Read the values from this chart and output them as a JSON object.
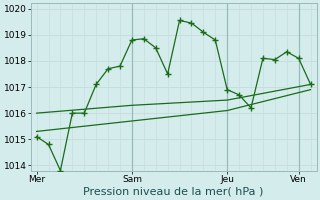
{
  "bg_color": "#d4ecec",
  "grid_color_h": "#c8dede",
  "grid_color_v": "#c8dede",
  "vline_color": "#9ababa",
  "line_color": "#1a6b1a",
  "marker_style": "+",
  "marker_size": 4,
  "marker_lw": 1.0,
  "xlabel": "Pression niveau de la mer( hPa )",
  "xlabel_fontsize": 8,
  "ylim": [
    1013.8,
    1020.2
  ],
  "yticks": [
    1014,
    1015,
    1016,
    1017,
    1018,
    1019,
    1020
  ],
  "ytick_fontsize": 6.5,
  "xtick_fontsize": 6.5,
  "day_labels": [
    "Mer",
    "Sam",
    "Jeu",
    "Ven"
  ],
  "day_positions": [
    0,
    8,
    16,
    22
  ],
  "vline_positions": [
    8,
    16,
    22
  ],
  "total_points": 24,
  "series1_x": [
    0,
    1,
    2,
    3,
    4,
    5,
    6,
    7,
    8,
    9,
    10,
    11,
    12,
    13,
    14,
    15,
    16,
    17,
    18,
    19,
    20,
    21,
    22,
    23
  ],
  "series1_y": [
    1015.1,
    1014.8,
    1013.8,
    1016.0,
    1016.0,
    1017.1,
    1017.7,
    1017.8,
    1018.8,
    1018.85,
    1018.5,
    1017.5,
    1019.55,
    1019.45,
    1019.1,
    1018.8,
    1016.9,
    1016.7,
    1016.2,
    1018.1,
    1018.05,
    1018.35,
    1018.1,
    1017.1
  ],
  "series2_x": [
    0,
    8,
    16,
    23
  ],
  "series2_y": [
    1016.0,
    1016.3,
    1016.5,
    1017.1
  ],
  "series3_x": [
    0,
    8,
    16,
    23
  ],
  "series3_y": [
    1015.3,
    1015.7,
    1016.1,
    1016.9
  ]
}
